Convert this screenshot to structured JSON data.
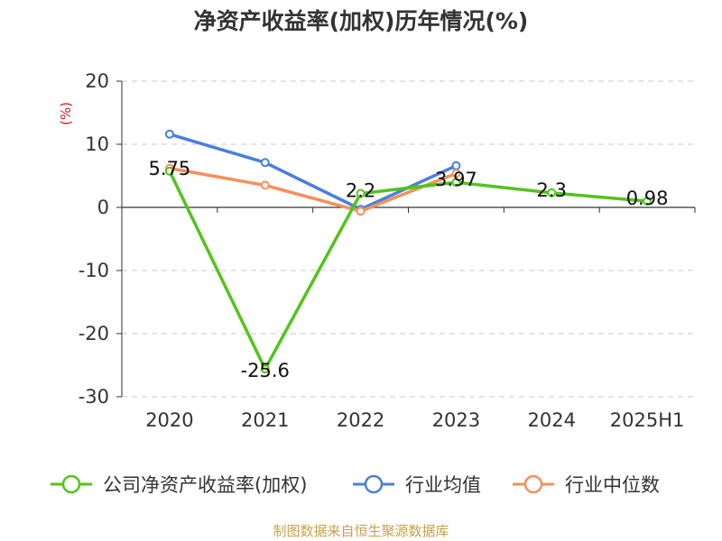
{
  "chart_data": {
    "type": "line",
    "title": "净资产收益率(加权)历年情况(%)",
    "ylabel": "(%)",
    "xlabel": "",
    "categories": [
      "2020",
      "2021",
      "2022",
      "2023",
      "2024",
      "2025H1"
    ],
    "ylim": [
      -30,
      20
    ],
    "yticks": [
      20,
      10,
      0,
      -10,
      -20,
      -30
    ],
    "grid": true,
    "legend_position": "bottom",
    "series": [
      {
        "name": "公司净资产收益率(加权)",
        "values": [
          5.75,
          -25.6,
          2.2,
          3.97,
          2.3,
          0.98
        ],
        "labels": [
          "5.75",
          "-25.6",
          "2.2",
          "3.97",
          "2.3",
          "0.98"
        ],
        "color": "#52c41a"
      },
      {
        "name": "行业均值",
        "values": [
          11.6,
          7.1,
          -0.3,
          6.6,
          null,
          null
        ],
        "color": "#4a7fdc"
      },
      {
        "name": "行业中位数",
        "values": [
          6.2,
          3.5,
          -0.6,
          5.4,
          null,
          null
        ],
        "color": "#f5905a"
      }
    ]
  },
  "source": "制图数据来自恒生聚源数据库",
  "colors": {
    "axis_label": "#d02020",
    "grid": "#c8c8c8",
    "text": "#333333"
  }
}
